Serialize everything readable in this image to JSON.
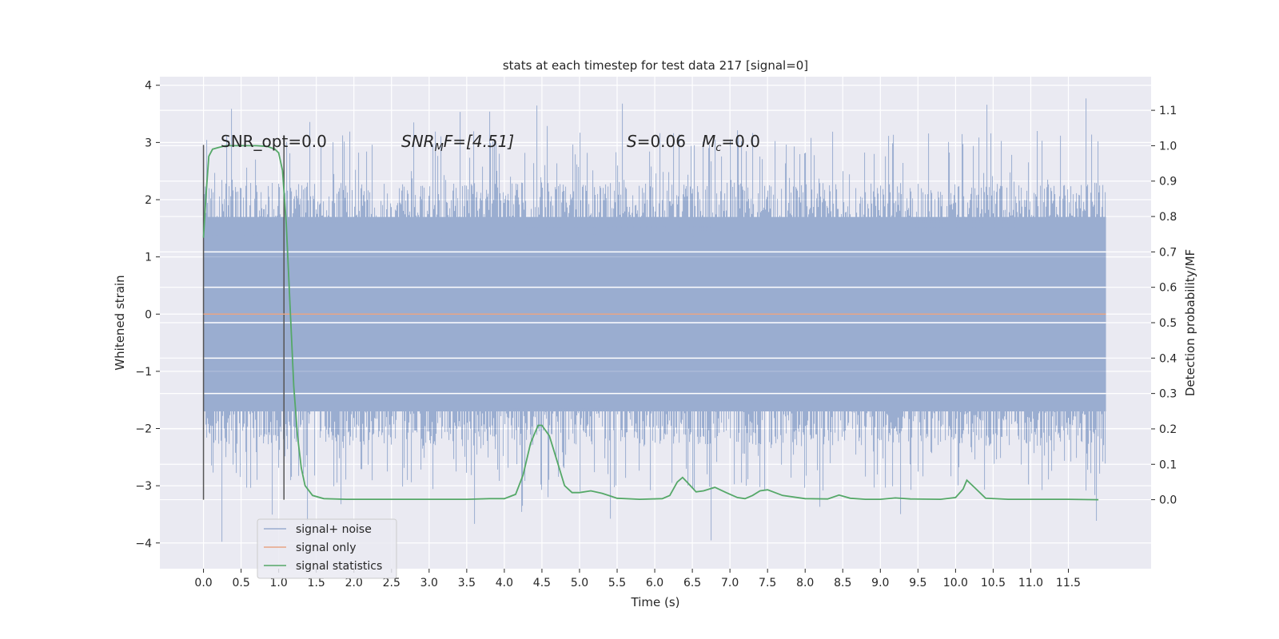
{
  "chart_data": {
    "type": "line",
    "title": "stats at each timestep for test data 217 [signal=0]",
    "xlabel": "Time (s)",
    "ylabel_left": "Whitened strain",
    "ylabel_right": "Detection probability/MF",
    "xlim": [
      -0.58,
      12.6
    ],
    "ylim_left": [
      -4.45,
      4.15
    ],
    "ylim_right": [
      -0.195,
      1.195
    ],
    "x_ticks": [
      "0.0",
      "0.5",
      "1.0",
      "1.5",
      "2.0",
      "2.5",
      "3.0",
      "3.5",
      "4.0",
      "4.5",
      "5.0",
      "5.5",
      "6.0",
      "6.5",
      "7.0",
      "7.5",
      "8.0",
      "8.5",
      "9.0",
      "9.5",
      "10.0",
      "10.5",
      "11.0",
      "11.5"
    ],
    "y_left_ticks": [
      "4",
      "3",
      "2",
      "1",
      "0",
      "−1",
      "−2",
      "−3",
      "−4"
    ],
    "y_right_ticks": [
      "1.1",
      "1.0",
      "0.9",
      "0.8",
      "0.7",
      "0.6",
      "0.5",
      "0.4",
      "0.3",
      "0.2",
      "0.1",
      "0.0"
    ],
    "grid": true,
    "legend_position": "lower-left",
    "annotations": {
      "snr_opt": "SNR_opt=0.0",
      "snr_mf_label": "SNR",
      "snr_mf_sub": "M",
      "snr_mf_value": "F=[4.51]",
      "s_label": "S",
      "s_value": "=0.06",
      "mc_label": "M",
      "mc_sub": "c",
      "mc_value": "=0.0"
    },
    "window_markers_x": [
      0.0,
      1.07
    ],
    "series": [
      {
        "name": "signal+ noise",
        "color": "#9aadd0",
        "x_range": [
          0.0,
          12.0
        ],
        "envelope_typical": [
          -1.7,
          1.7
        ],
        "spike_max": 3.77,
        "spike_min": -4.07
      },
      {
        "name": "signal only",
        "color": "#e8a585",
        "x": [
          0.0,
          12.0
        ],
        "y": [
          0.0,
          0.0
        ]
      },
      {
        "name": "signal statistics",
        "color": "#55a868",
        "x": [
          0.0,
          0.03,
          0.07,
          0.12,
          0.2,
          0.3,
          0.5,
          0.7,
          0.85,
          0.95,
          1.0,
          1.05,
          1.1,
          1.15,
          1.2,
          1.25,
          1.3,
          1.35,
          1.45,
          1.6,
          1.9,
          2.5,
          3.0,
          3.5,
          3.8,
          4.0,
          4.15,
          4.25,
          4.35,
          4.45,
          4.5,
          4.6,
          4.7,
          4.8,
          4.9,
          5.0,
          5.15,
          5.3,
          5.5,
          5.8,
          6.1,
          6.2,
          6.3,
          6.37,
          6.45,
          6.55,
          6.65,
          6.8,
          6.95,
          7.1,
          7.2,
          7.3,
          7.4,
          7.5,
          7.7,
          8.0,
          8.3,
          8.45,
          8.6,
          8.8,
          9.0,
          9.2,
          9.4,
          9.8,
          10.0,
          10.1,
          10.15,
          10.25,
          10.4,
          10.7,
          11.0,
          11.5,
          11.9
        ],
        "y": [
          0.74,
          0.85,
          0.97,
          0.99,
          0.995,
          1.0,
          1.0,
          1.0,
          0.998,
          0.99,
          0.98,
          0.93,
          0.78,
          0.55,
          0.32,
          0.18,
          0.09,
          0.04,
          0.012,
          0.003,
          0.001,
          0.001,
          0.001,
          0.001,
          0.003,
          0.003,
          0.015,
          0.07,
          0.16,
          0.21,
          0.21,
          0.18,
          0.11,
          0.04,
          0.02,
          0.02,
          0.025,
          0.018,
          0.004,
          0.001,
          0.003,
          0.012,
          0.05,
          0.063,
          0.045,
          0.022,
          0.025,
          0.035,
          0.02,
          0.006,
          0.003,
          0.012,
          0.025,
          0.028,
          0.012,
          0.003,
          0.002,
          0.013,
          0.004,
          0.001,
          0.001,
          0.005,
          0.002,
          0.001,
          0.006,
          0.03,
          0.055,
          0.035,
          0.004,
          0.001,
          0.001,
          0.001,
          0.0
        ]
      }
    ]
  }
}
